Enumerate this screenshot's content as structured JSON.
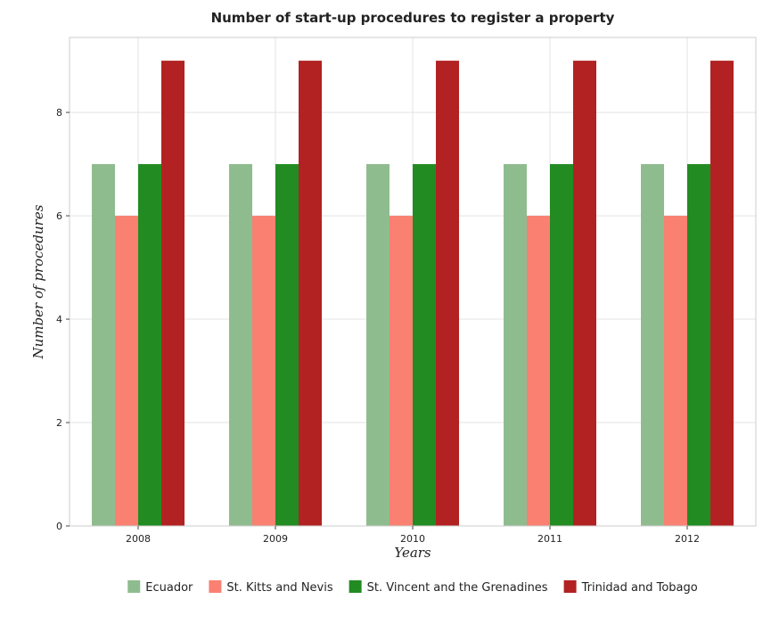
{
  "chart_data": {
    "type": "bar",
    "title": "Number of start-up procedures to register a property",
    "xlabel": "Years",
    "ylabel": "Number of procedures",
    "categories": [
      "2008",
      "2009",
      "2010",
      "2011",
      "2012"
    ],
    "series": [
      {
        "name": "Ecuador",
        "color": "#8fbc8f",
        "values": [
          7,
          7,
          7,
          7,
          7
        ]
      },
      {
        "name": "St. Kitts and Nevis",
        "color": "#fa8072",
        "values": [
          6,
          6,
          6,
          6,
          6
        ]
      },
      {
        "name": "St. Vincent and the Grenadines",
        "color": "#228b22",
        "values": [
          7,
          7,
          7,
          7,
          7
        ]
      },
      {
        "name": "Trinidad and Tobago",
        "color": "#b22222",
        "values": [
          9,
          9,
          9,
          9,
          9
        ]
      }
    ],
    "ylim": [
      0,
      9.45
    ],
    "yticks": [
      0,
      2,
      4,
      6,
      8
    ],
    "ytick_labels": [
      "0",
      "2",
      "4",
      "6",
      "8"
    ],
    "grid": true,
    "legend_position": "bottom"
  }
}
